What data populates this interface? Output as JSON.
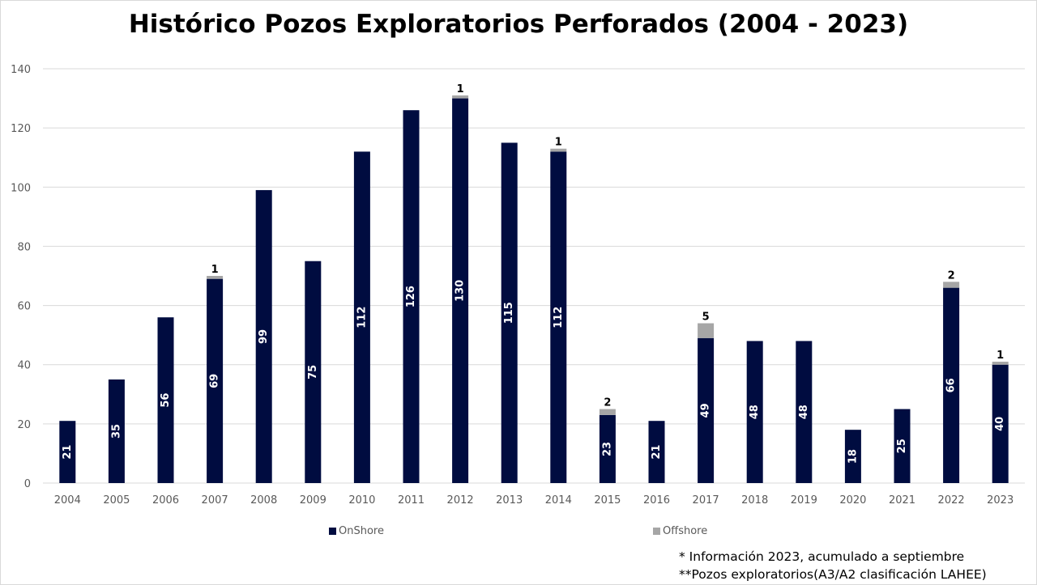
{
  "chart_data": {
    "type": "bar",
    "stacked": true,
    "title": "Histórico Pozos Exploratorios Perforados (2004 - 2023)",
    "xlabel": "",
    "ylabel": "",
    "ylim": [
      0,
      140
    ],
    "yticks": [
      0,
      20,
      40,
      60,
      80,
      100,
      120,
      140
    ],
    "grid": true,
    "legend_position": "bottom",
    "categories": [
      "2004",
      "2005",
      "2006",
      "2007",
      "2008",
      "2009",
      "2010",
      "2011",
      "2012",
      "2013",
      "2014",
      "2015",
      "2016",
      "2017",
      "2018",
      "2019",
      "2020",
      "2021",
      "2022",
      "2023"
    ],
    "series": [
      {
        "name": "OnShore",
        "color": "#000c40",
        "values": [
          21,
          35,
          56,
          69,
          99,
          75,
          112,
          126,
          130,
          115,
          112,
          23,
          21,
          49,
          48,
          48,
          18,
          25,
          66,
          40
        ]
      },
      {
        "name": "Offshore",
        "color": "#a6a6a6",
        "values": [
          0,
          0,
          0,
          1,
          0,
          0,
          0,
          0,
          1,
          0,
          1,
          2,
          0,
          5,
          0,
          0,
          0,
          0,
          2,
          1
        ]
      }
    ]
  },
  "notes": [
    "* Información 2023, acumulado a septiembre",
    "**Pozos exploratorios(A3/A2 clasificación LAHEE)"
  ]
}
